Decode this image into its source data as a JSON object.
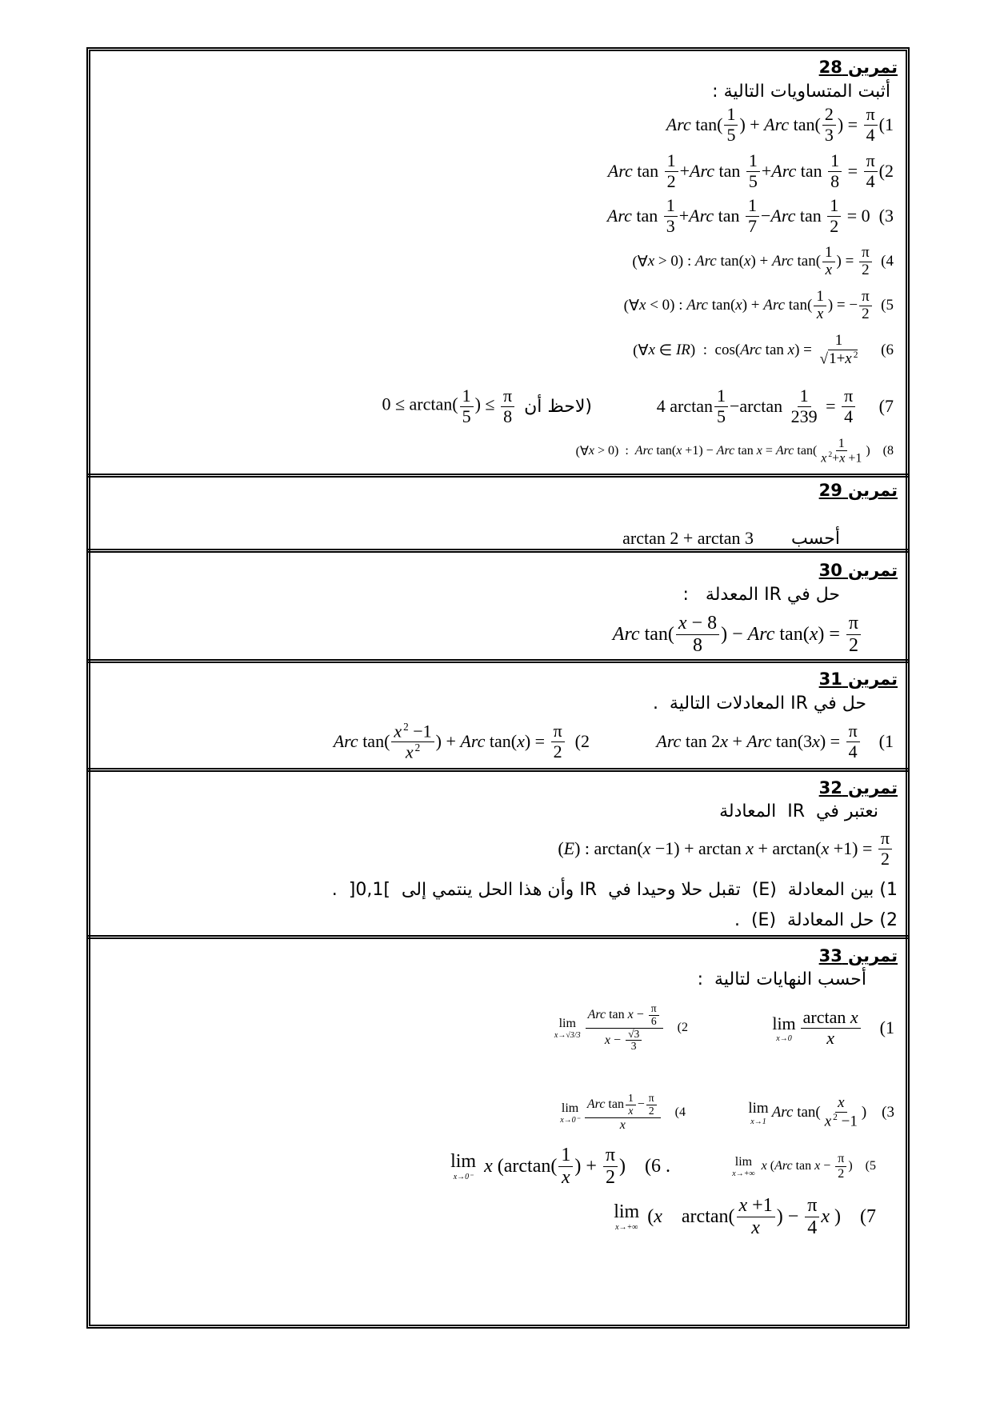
{
  "ex28": {
    "title": "تمرين 28",
    "instruction": "أثبت المتساويات التالية :",
    "items": [
      [
        {
          "i": "Arc"
        },
        " tan(",
        {
          "f": [
            [
              "1"
            ],
            [
              "5"
            ]
          ]
        },
        ") + ",
        {
          "i": "Arc"
        },
        " tan(",
        {
          "f": [
            [
              "2"
            ],
            [
              "3"
            ]
          ]
        },
        ") = ",
        {
          "f": [
            [
              "π"
            ],
            [
              "4"
            ]
          ]
        },
        "(1"
      ],
      [
        {
          "i": "Arc"
        },
        " tan ",
        {
          "f": [
            [
              "1"
            ],
            [
              "2"
            ]
          ]
        },
        "+",
        {
          "i": "Arc"
        },
        " tan ",
        {
          "f": [
            [
              "1"
            ],
            [
              "5"
            ]
          ]
        },
        "+",
        {
          "i": "Arc"
        },
        " tan ",
        {
          "f": [
            [
              "1"
            ],
            [
              "8"
            ]
          ]
        },
        " = ",
        {
          "f": [
            [
              "π"
            ],
            [
              "4"
            ]
          ]
        },
        "(2"
      ],
      [
        {
          "i": "Arc"
        },
        " tan ",
        {
          "f": [
            [
              "1"
            ],
            [
              "3"
            ]
          ]
        },
        "+",
        {
          "i": "Arc"
        },
        " tan ",
        {
          "f": [
            [
              "1"
            ],
            [
              "7"
            ]
          ]
        },
        "−",
        {
          "i": "Arc"
        },
        " tan ",
        {
          "f": [
            [
              "1"
            ],
            [
              "2"
            ]
          ]
        },
        " = 0  (3"
      ],
      [
        "(∀",
        {
          "i": "x"
        },
        " > 0) : ",
        {
          "i": "Arc"
        },
        " tan(",
        {
          "i": "x"
        },
        ") + ",
        {
          "i": "Arc"
        },
        " tan(",
        {
          "f": [
            [
              "1"
            ],
            [
              {
                "i": "x"
              }
            ]
          ]
        },
        ") = ",
        {
          "f": [
            [
              "π"
            ],
            [
              "2"
            ]
          ]
        },
        "  (4"
      ],
      [
        "(∀",
        {
          "i": "x"
        },
        " < 0) : ",
        {
          "i": "Arc"
        },
        " tan(",
        {
          "i": "x"
        },
        ") + ",
        {
          "i": "Arc"
        },
        " tan(",
        {
          "f": [
            [
              "1"
            ],
            [
              {
                "i": "x"
              }
            ]
          ]
        },
        ") = −",
        {
          "f": [
            [
              "π"
            ],
            [
              "2"
            ]
          ]
        },
        "  (5"
      ],
      [
        "(∀",
        {
          "i": "x"
        },
        " ∈ ",
        {
          "i": "IR"
        },
        ")  :  cos(",
        {
          "i": "Arc"
        },
        " tan ",
        {
          "i": "x"
        },
        ") = ",
        {
          "f": [
            [
              "1"
            ],
            [
              {
                "sqrt": [
                  "1+",
                  {
                    "i": "x"
                  },
                  {
                    "sup": "2"
                  }
                ]
              }
            ]
          ]
        },
        "     (6"
      ],
      [
        "4 arctan",
        {
          "f": [
            [
              "1"
            ],
            [
              "5"
            ]
          ]
        },
        "−arctan ",
        {
          "f": [
            [
              "1"
            ],
            [
              "239"
            ]
          ]
        },
        " = ",
        {
          "f": [
            [
              "π"
            ],
            [
              "4"
            ]
          ]
        },
        "     (7"
      ],
      [
        "(∀",
        {
          "i": "x"
        },
        " > 0)  :  ",
        {
          "i": "Arc"
        },
        " tan(",
        {
          "i": "x"
        },
        " +1) − ",
        {
          "i": "Arc"
        },
        " tan ",
        {
          "i": "x"
        },
        " = ",
        {
          "i": "Arc"
        },
        " tan(",
        {
          "f": [
            [
              "1"
            ],
            [
              {
                "i": "x"
              },
              {
                "sup": "2"
              },
              "+",
              {
                "i": "x"
              },
              " +1"
            ]
          ]
        },
        ")    (8"
      ]
    ],
    "hint_math": [
      "0 ≤ arctan(",
      {
        "f": [
          [
            "1"
          ],
          [
            "5"
          ]
        ]
      },
      ") ≤ ",
      {
        "f": [
          [
            "π"
          ],
          [
            "8"
          ]
        ]
      }
    ],
    "hint_text": "(لاحظ أن"
  },
  "ex29": {
    "title": "تمرين 29",
    "instruction": "أحسب",
    "math": [
      "arctan 2 + arctan 3"
    ]
  },
  "ex30": {
    "title": "تمرين 30",
    "instruction": "حل في IR المعدلة   :",
    "math": [
      {
        "i": "Arc"
      },
      " tan(",
      {
        "f": [
          [
            {
              "i": "x"
            },
            " − 8"
          ],
          [
            "8"
          ]
        ]
      },
      ") − ",
      {
        "i": "Arc"
      },
      " tan(",
      {
        "i": "x"
      },
      ") = ",
      {
        "f": [
          [
            "π"
          ],
          [
            "2"
          ]
        ]
      }
    ]
  },
  "ex31": {
    "title": "تمرين 31",
    "instruction": "حل في IR المعادلات التالية  .",
    "eq1": [
      {
        "i": "Arc"
      },
      " tan 2",
      {
        "i": "x"
      },
      " + ",
      {
        "i": "Arc"
      },
      " tan(3",
      {
        "i": "x"
      },
      ") = ",
      {
        "f": [
          [
            "π"
          ],
          [
            "4"
          ]
        ]
      },
      "    (1"
    ],
    "eq2": [
      {
        "i": "Arc"
      },
      " tan(",
      {
        "f": [
          [
            {
              "i": "x"
            },
            {
              "sup": "2"
            },
            " −1"
          ],
          [
            {
              "i": "x"
            },
            {
              "sup": "2"
            }
          ]
        ]
      },
      ") + ",
      {
        "i": "Arc"
      },
      " tan(",
      {
        "i": "x"
      },
      ") = ",
      {
        "f": [
          [
            "π"
          ],
          [
            "2"
          ]
        ]
      },
      "  (2"
    ]
  },
  "ex32": {
    "title": "تمرين 32",
    "instruction": "نعتبر في  IR  المعادلة",
    "math": [
      "(",
      {
        "i": "E"
      },
      ") : arctan(",
      {
        "i": "x"
      },
      " −1) + arctan ",
      {
        "i": "x"
      },
      " + arctan(",
      {
        "i": "x"
      },
      " +1) = ",
      {
        "f": [
          [
            "π"
          ],
          [
            "2"
          ]
        ]
      }
    ],
    "q1": "1) بين المعادلة  (E)  تقبل حلا وحيدا في  IR وأن هذا الحل ينتمي إلى  ]0,1[  .",
    "q2": "2) حل المعادلة  (E)  ."
  },
  "ex33": {
    "title": "تمرين 33",
    "instruction": "أحسب النهايات لتالية  :",
    "limits": [
      [
        {
          "lim": "x→0"
        },
        {
          "f": [
            [
              "arctan ",
              {
                "i": "x"
              }
            ],
            [
              {
                "i": "x"
              }
            ]
          ]
        },
        "    (1"
      ],
      [
        {
          "lim": "x→√3/3"
        },
        {
          "f": [
            [
              {
                "i": "Arc"
              },
              " tan ",
              {
                "i": "x"
              },
              " − ",
              {
                "f": [
                  [
                    "π"
                  ],
                  [
                    "6"
                  ]
                ]
              }
            ],
            [
              {
                "i": "x"
              },
              " − ",
              {
                "f": [
                  [
                    "√3"
                  ],
                  [
                    "3"
                  ]
                ]
              }
            ]
          ]
        },
        "    (2"
      ],
      [
        {
          "lim": "x→1"
        },
        {
          "i": "Arc"
        },
        " tan(",
        {
          "f": [
            [
              {
                "i": "x"
              }
            ],
            [
              {
                "i": "x"
              },
              {
                "sup": "2"
              },
              " −1"
            ]
          ]
        },
        ")    (3"
      ],
      [
        {
          "lim": "x→0⁻"
        },
        {
          "f": [
            [
              {
                "i": "Arc"
              },
              " tan",
              {
                "f": [
                  [
                    "1"
                  ],
                  [
                    {
                      "i": "x"
                    }
                  ]
                ]
              },
              "−",
              {
                "f": [
                  [
                    "π"
                  ],
                  [
                    "2"
                  ]
                ]
              }
            ],
            [
              {
                "i": "x"
              }
            ]
          ]
        },
        "    (4"
      ],
      [
        {
          "lim": "x→+∞"
        },
        " ",
        {
          "i": "x"
        },
        " (",
        {
          "i": "Arc"
        },
        " tan ",
        {
          "i": "x"
        },
        " − ",
        {
          "f": [
            [
              "π"
            ],
            [
              "2"
            ]
          ]
        },
        ")    (5"
      ],
      [
        {
          "lim": "x→0⁻"
        },
        " ",
        {
          "i": "x"
        },
        " (arctan(",
        {
          "f": [
            [
              "1"
            ],
            [
              {
                "i": "x"
              }
            ]
          ]
        },
        ") + ",
        {
          "f": [
            [
              "π"
            ],
            [
              "2"
            ]
          ]
        },
        ")    (6 ."
      ],
      [
        {
          "lim": "x→+∞"
        },
        " (",
        {
          "i": "x"
        },
        "    arctan(",
        {
          "f": [
            [
              {
                "i": "x"
              },
              " +1"
            ],
            [
              {
                "i": "x"
              }
            ]
          ]
        },
        ") − ",
        {
          "f": [
            [
              "π"
            ],
            [
              "4"
            ]
          ]
        },
        {
          "i": "x"
        },
        " )    (7"
      ]
    ]
  }
}
